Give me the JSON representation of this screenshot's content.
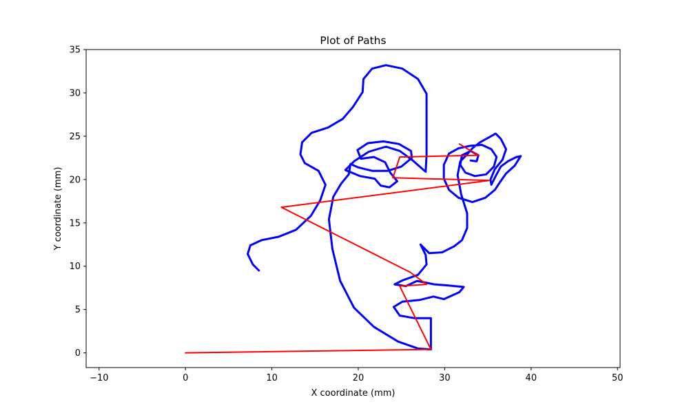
{
  "chart_data": {
    "type": "line",
    "title": "Plot of Paths",
    "xlabel": "X coordinate (mm)",
    "ylabel": "Y coordinate (mm)",
    "xlim": [
      -11.5,
      50.3
    ],
    "ylim": [
      -1.7,
      35
    ],
    "xticks": [
      -10,
      0,
      10,
      20,
      30,
      40,
      50
    ],
    "yticks": [
      0,
      5,
      10,
      15,
      20,
      25,
      30,
      35
    ],
    "grid": false,
    "colors": {
      "draw": "#0000ff",
      "travel": "#ff0000"
    },
    "series": [
      {
        "color": "#ff0000",
        "points": [
          [
            0,
            0
          ],
          [
            28.4,
            0.4
          ],
          [
            24.8,
            7.7
          ],
          [
            27.9,
            7.9
          ],
          [
            26.0,
            9.3
          ],
          [
            11.1,
            16.8
          ],
          [
            35.2,
            19.9
          ],
          [
            24.0,
            20.2
          ],
          [
            24.8,
            22.6
          ],
          [
            33.9,
            22.8
          ],
          [
            31.7,
            24.1
          ]
        ]
      },
      {
        "color": "#0000ff",
        "points": [
          [
            8.5,
            9.5
          ],
          [
            7.8,
            10.2
          ],
          [
            7.2,
            11.4
          ],
          [
            7.5,
            12.4
          ],
          [
            8.8,
            13.0
          ],
          [
            10.8,
            13.4
          ],
          [
            12.8,
            14.2
          ],
          [
            14.5,
            15.8
          ],
          [
            15.6,
            17.6
          ],
          [
            16.2,
            19.4
          ],
          [
            15.4,
            21.0
          ],
          [
            13.8,
            21.9
          ],
          [
            13.3,
            22.9
          ],
          [
            13.5,
            24.3
          ],
          [
            14.6,
            25.4
          ],
          [
            16.5,
            26.0
          ],
          [
            18.2,
            27.0
          ],
          [
            19.4,
            28.4
          ],
          [
            20.5,
            30.1
          ],
          [
            20.6,
            31.6
          ],
          [
            21.6,
            32.8
          ],
          [
            23.2,
            33.2
          ],
          [
            25.1,
            32.8
          ],
          [
            26.9,
            31.6
          ],
          [
            27.9,
            29.9
          ],
          [
            27.9,
            26.2
          ],
          [
            27.9,
            22.8
          ],
          [
            27.8,
            20.9
          ],
          [
            26.3,
            22.2
          ],
          [
            24.8,
            23.3
          ],
          [
            23.2,
            23.8
          ],
          [
            21.2,
            23.2
          ],
          [
            19.5,
            22.1
          ],
          [
            18.5,
            21.1
          ],
          [
            20.2,
            20.4
          ],
          [
            21.9,
            20.1
          ],
          [
            22.6,
            19.3
          ],
          [
            23.6,
            19.1
          ],
          [
            24.5,
            19.8
          ],
          [
            23.7,
            20.8
          ],
          [
            23.1,
            22.0
          ],
          [
            21.8,
            22.6
          ],
          [
            20.3,
            22.4
          ],
          [
            19.9,
            23.4
          ],
          [
            21.1,
            24.2
          ],
          [
            22.9,
            24.4
          ],
          [
            24.7,
            24.1
          ],
          [
            26.1,
            23.3
          ],
          [
            26.2,
            22.5
          ],
          [
            25.0,
            21.5
          ],
          [
            23.4,
            21.0
          ],
          [
            21.6,
            21.0
          ],
          [
            20.0,
            21.4
          ],
          [
            19.1,
            21.8
          ],
          [
            18.9,
            20.6
          ],
          [
            18.0,
            19.5
          ],
          [
            17.1,
            18.0
          ],
          [
            16.6,
            15.4
          ],
          [
            17.0,
            12.0
          ],
          [
            17.9,
            8.3
          ],
          [
            19.5,
            5.2
          ],
          [
            21.8,
            3.0
          ],
          [
            24.6,
            1.3
          ],
          [
            26.9,
            0.5
          ],
          [
            28.4,
            0.4
          ],
          [
            28.4,
            2.6
          ],
          [
            28.4,
            4.0
          ],
          [
            26.5,
            4.0
          ],
          [
            24.8,
            4.3
          ],
          [
            24.1,
            5.3
          ],
          [
            25.1,
            5.9
          ],
          [
            27.1,
            6.1
          ],
          [
            28.7,
            6.5
          ],
          [
            29.9,
            6.2
          ],
          [
            31.7,
            7.0
          ],
          [
            32.2,
            7.6
          ],
          [
            30.1,
            7.8
          ],
          [
            28.8,
            7.9
          ],
          [
            26.8,
            8.3
          ],
          [
            25.5,
            7.7
          ],
          [
            24.2,
            7.9
          ],
          [
            25.2,
            8.4
          ],
          [
            26.9,
            9.0
          ],
          [
            27.9,
            10.2
          ],
          [
            27.8,
            11.3
          ],
          [
            27.2,
            12.5
          ],
          [
            28.2,
            11.5
          ],
          [
            29.7,
            11.6
          ],
          [
            31.1,
            12.3
          ],
          [
            32.0,
            13.0
          ],
          [
            32.6,
            14.4
          ],
          [
            32.6,
            16.1
          ],
          [
            31.9,
            18.3
          ],
          [
            31.5,
            20.5
          ],
          [
            31.8,
            22.1
          ],
          [
            32.5,
            22.8
          ],
          [
            33.2,
            23.6
          ],
          [
            34.1,
            24.3
          ],
          [
            35.2,
            24.9
          ],
          [
            35.9,
            25.3
          ],
          [
            36.5,
            24.7
          ],
          [
            37.1,
            23.5
          ],
          [
            36.7,
            22.3
          ],
          [
            35.8,
            21.2
          ],
          [
            35.3,
            20.0
          ],
          [
            35.4,
            19.4
          ],
          [
            35.9,
            20.4
          ],
          [
            36.5,
            21.5
          ],
          [
            37.3,
            22.1
          ],
          [
            38.3,
            22.6
          ],
          [
            38.8,
            22.7
          ],
          [
            38.1,
            21.6
          ],
          [
            37.1,
            20.7
          ],
          [
            36.4,
            19.7
          ],
          [
            35.8,
            18.8
          ],
          [
            34.7,
            17.9
          ],
          [
            33.2,
            17.4
          ],
          [
            31.6,
            17.9
          ],
          [
            30.5,
            18.8
          ],
          [
            29.9,
            20.1
          ],
          [
            29.9,
            21.7
          ],
          [
            30.5,
            23.0
          ],
          [
            31.6,
            23.6
          ],
          [
            33.0,
            23.9
          ],
          [
            34.3,
            24.0
          ],
          [
            35.4,
            23.5
          ],
          [
            36.0,
            22.6
          ],
          [
            35.7,
            21.5
          ],
          [
            34.8,
            20.6
          ],
          [
            33.5,
            20.4
          ],
          [
            32.4,
            20.8
          ],
          [
            31.8,
            21.7
          ],
          [
            32.0,
            22.8
          ],
          [
            33.0,
            23.3
          ],
          [
            33.9,
            22.8
          ],
          [
            33.7,
            22.1
          ],
          [
            33.0,
            22.2
          ]
        ]
      }
    ]
  }
}
